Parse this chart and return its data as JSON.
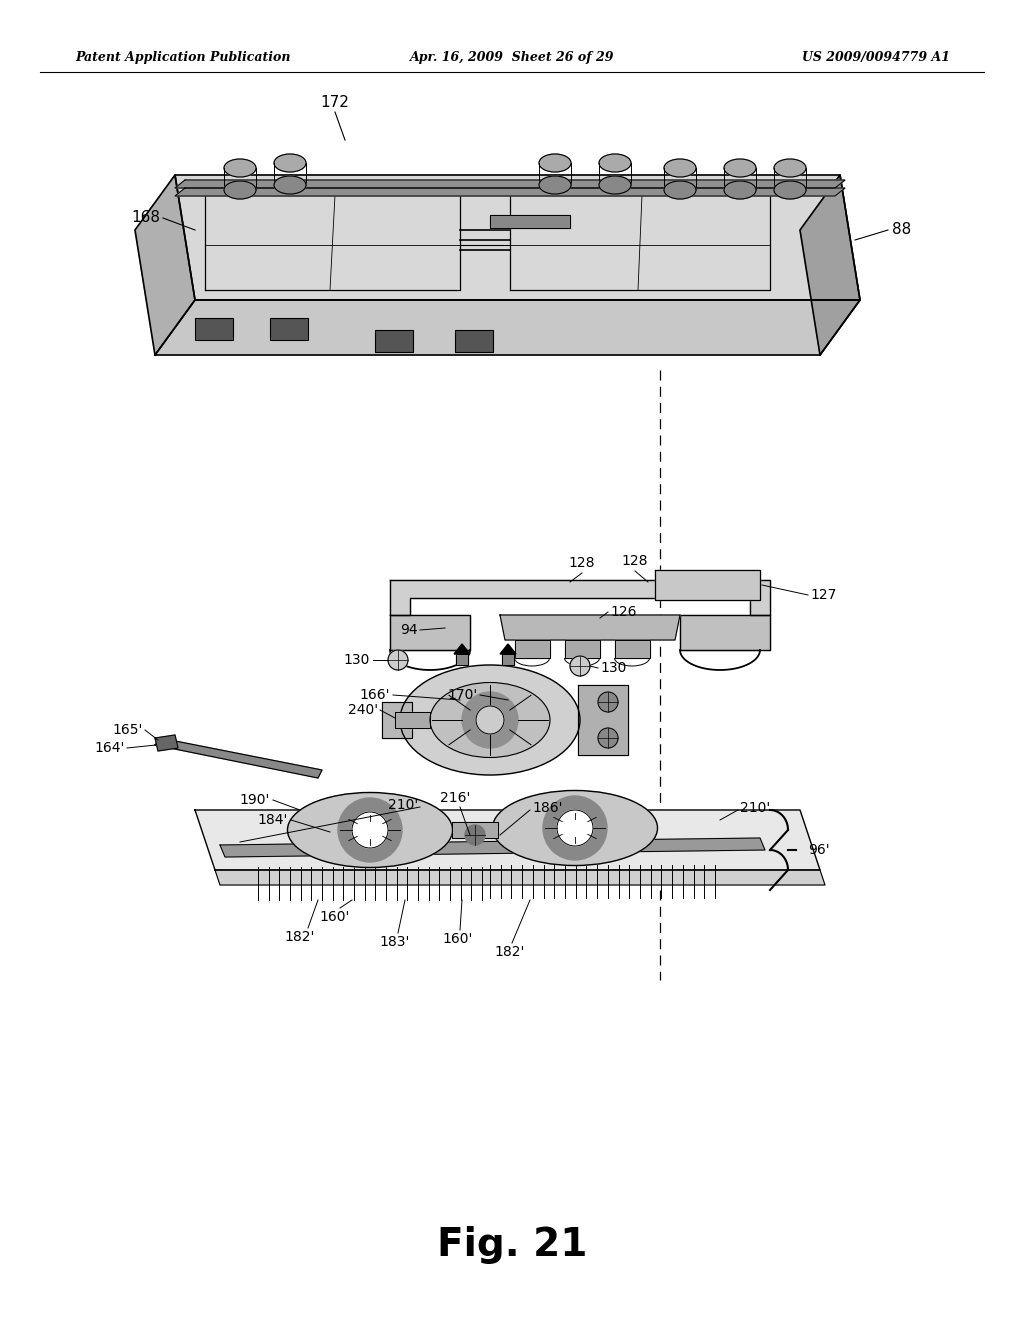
{
  "bg_color": "#ffffff",
  "header_left": "Patent Application Publication",
  "header_mid": "Apr. 16, 2009  Sheet 26 of 29",
  "header_right": "US 2009/0094779 A1",
  "figure_label": "Fig. 21"
}
